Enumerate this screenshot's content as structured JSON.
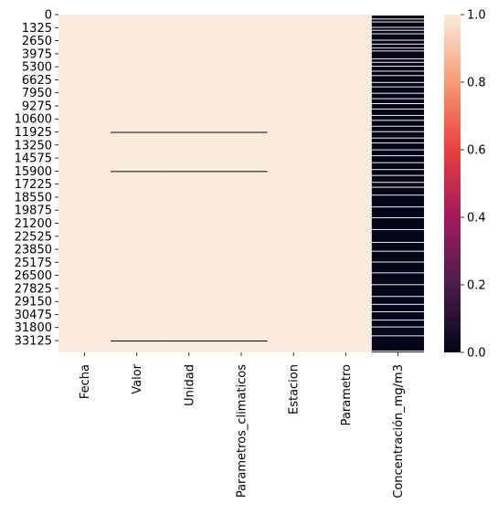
{
  "chart_data": {
    "type": "heatmap",
    "title": "",
    "xlabel": "",
    "ylabel": "",
    "columns": [
      "Fecha",
      "Valor",
      "Unidad",
      "Parametros_climaticos",
      "Estacion",
      "Parametro",
      "Concentración_mg/m3"
    ],
    "y_ticks": [
      "0",
      "1325",
      "2650",
      "3975",
      "5300",
      "6625",
      "7950",
      "9275",
      "10600",
      "11925",
      "13250",
      "14575",
      "15900",
      "17225",
      "18550",
      "19875",
      "21200",
      "22525",
      "23850",
      "25175",
      "26500",
      "27825",
      "29150",
      "30475",
      "31800",
      "33125"
    ],
    "row_count": 34331,
    "value_range": [
      0,
      1
    ],
    "colorbar_ticks": [
      "0.0",
      "0.2",
      "0.4",
      "0.6",
      "0.8",
      "1.0"
    ],
    "colormap": [
      "#03051a",
      "#4c1d4b",
      "#a11a5b",
      "#e83f3f",
      "#f69c73",
      "#faebdd"
    ],
    "base_value": 1,
    "missing_value_bands": [
      {
        "columns": [
          1,
          2,
          3
        ],
        "row_start": 11925,
        "row_end": 11950,
        "value": 0
      },
      {
        "columns": [
          1,
          2,
          3
        ],
        "row_start": 15900,
        "row_end": 15925,
        "value": 0
      },
      {
        "columns": [
          1,
          2,
          3
        ],
        "row_start": 33125,
        "row_end": 33150,
        "value": 0
      }
    ],
    "concentration_column": {
      "column": 6,
      "dominant_value": 0,
      "light_rows": [
        [
          0,
          100
        ],
        [
          400,
          500
        ],
        [
          700,
          750
        ],
        [
          1250,
          1300
        ],
        [
          1550,
          1600
        ],
        [
          1900,
          1950
        ],
        [
          2550,
          2600
        ],
        [
          2950,
          3000
        ],
        [
          3350,
          3400
        ],
        [
          3650,
          3700
        ],
        [
          4450,
          4500
        ],
        [
          4800,
          4850
        ],
        [
          5200,
          5250
        ],
        [
          5700,
          5750
        ],
        [
          6150,
          6200
        ],
        [
          6850,
          6900
        ],
        [
          7300,
          7350
        ],
        [
          7950,
          8000
        ],
        [
          8500,
          8550
        ],
        [
          9000,
          9050
        ],
        [
          9550,
          9600
        ],
        [
          10200,
          10250
        ],
        [
          10700,
          10750
        ],
        [
          11300,
          11350
        ],
        [
          11850,
          11900
        ],
        [
          12500,
          12550
        ],
        [
          13000,
          13050
        ],
        [
          13700,
          13750
        ],
        [
          14300,
          14350
        ],
        [
          15000,
          15050
        ],
        [
          15700,
          15750
        ],
        [
          16300,
          16350
        ],
        [
          17000,
          17050
        ],
        [
          17500,
          17550
        ],
        [
          18300,
          18350
        ],
        [
          19500,
          19550
        ],
        [
          20600,
          20650
        ],
        [
          21800,
          21850
        ],
        [
          23100,
          23150
        ],
        [
          24000,
          24050
        ],
        [
          25100,
          25150
        ],
        [
          26200,
          26250
        ],
        [
          27400,
          27450
        ],
        [
          28600,
          28650
        ],
        [
          29400,
          29450
        ],
        [
          30150,
          30200
        ],
        [
          31000,
          31050
        ],
        [
          31700,
          31750
        ],
        [
          32600,
          32650
        ],
        [
          34150,
          34250
        ]
      ]
    }
  }
}
